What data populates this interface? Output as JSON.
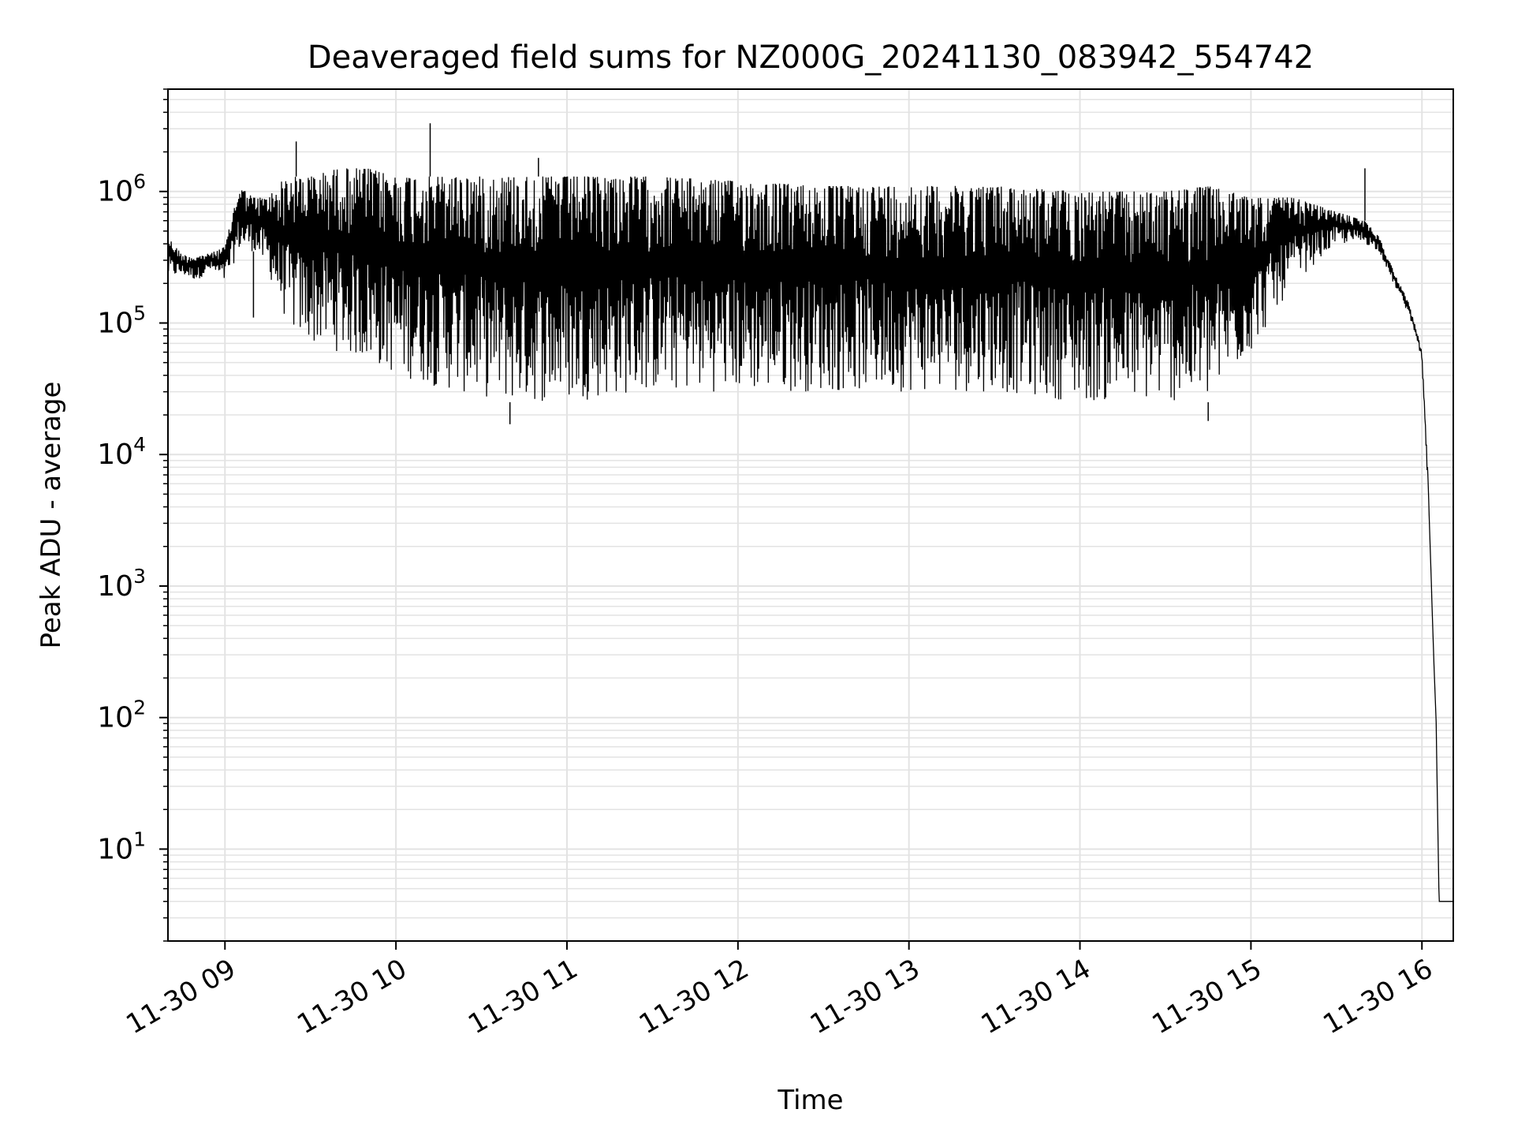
{
  "chart_data": {
    "type": "line",
    "title": "Deaveraged field sums for NZ000G_20241130_083942_554742",
    "xlabel": "Time",
    "ylabel": "Peak ADU - average",
    "yscale": "log",
    "grid": true,
    "line_color": "#000000",
    "grid_color": "#e3e3e3",
    "xlim": [
      "2024-11-30 08:40",
      "2024-11-30 16:11"
    ],
    "ylim": [
      2,
      6000000
    ],
    "x_ticks": [
      {
        "value": "2024-11-30 09:00",
        "label": "11-30 09"
      },
      {
        "value": "2024-11-30 10:00",
        "label": "11-30 10"
      },
      {
        "value": "2024-11-30 11:00",
        "label": "11-30 11"
      },
      {
        "value": "2024-11-30 12:00",
        "label": "11-30 12"
      },
      {
        "value": "2024-11-30 13:00",
        "label": "11-30 13"
      },
      {
        "value": "2024-11-30 14:00",
        "label": "11-30 14"
      },
      {
        "value": "2024-11-30 15:00",
        "label": "11-30 15"
      },
      {
        "value": "2024-11-30 16:00",
        "label": "11-30 16"
      }
    ],
    "y_ticks": [
      {
        "value": 10,
        "base": "10",
        "exp": "1"
      },
      {
        "value": 100,
        "base": "10",
        "exp": "2"
      },
      {
        "value": 1000,
        "base": "10",
        "exp": "3"
      },
      {
        "value": 10000,
        "base": "10",
        "exp": "4"
      },
      {
        "value": 100000,
        "base": "10",
        "exp": "5"
      },
      {
        "value": 1000000,
        "base": "10",
        "exp": "6"
      }
    ],
    "series": [
      {
        "x": [
          "2024-11-30 08:40",
          "2024-11-30 08:45",
          "2024-11-30 08:50",
          "2024-11-30 08:55",
          "2024-11-30 09:00",
          "2024-11-30 09:05",
          "2024-11-30 09:10",
          "2024-11-30 09:15",
          "2024-11-30 09:20",
          "2024-11-30 09:25",
          "2024-11-30 09:30",
          "2024-11-30 09:40",
          "2024-11-30 09:50",
          "2024-11-30 10:00",
          "2024-11-30 10:20",
          "2024-11-30 10:40",
          "2024-11-30 11:00",
          "2024-11-30 11:30",
          "2024-11-30 12:00",
          "2024-11-30 12:30",
          "2024-11-30 13:00",
          "2024-11-30 13:30",
          "2024-11-30 14:00",
          "2024-11-30 14:30",
          "2024-11-30 14:45",
          "2024-11-30 15:00",
          "2024-11-30 15:15",
          "2024-11-30 15:30",
          "2024-11-30 15:40",
          "2024-11-30 15:45",
          "2024-11-30 15:50",
          "2024-11-30 15:55",
          "2024-11-30 15:58",
          "2024-11-30 16:00",
          "2024-11-30 16:02",
          "2024-11-30 16:04",
          "2024-11-30 16:05",
          "2024-11-30 16:06",
          "2024-11-30 16:11"
        ],
        "high": [
          450000,
          330000,
          320000,
          340000,
          380000,
          1100000,
          900000,
          900000,
          1200000,
          1300000,
          1300000,
          1500000,
          1500000,
          1300000,
          1300000,
          1300000,
          1300000,
          1300000,
          1200000,
          1100000,
          1100000,
          1100000,
          1000000,
          1000000,
          1100000,
          900000,
          900000,
          700000,
          600000,
          450000,
          250000,
          150000,
          90000,
          60000,
          8000,
          350,
          90,
          4,
          4
        ],
        "low": [
          220000,
          230000,
          210000,
          250000,
          200000,
          350000,
          350000,
          250000,
          120000,
          80000,
          70000,
          60000,
          50000,
          40000,
          30000,
          25000,
          25000,
          30000,
          30000,
          30000,
          30000,
          30000,
          25000,
          25000,
          25000,
          60000,
          200000,
          400000,
          400000,
          350000,
          200000,
          120000,
          80000,
          50000,
          6000,
          300,
          80,
          4,
          4
        ]
      }
    ],
    "spikes": [
      {
        "x": "2024-11-30 09:25",
        "y": 2400000
      },
      {
        "x": "2024-11-30 10:12",
        "y": 3300000
      },
      {
        "x": "2024-11-30 10:50",
        "y": 1800000
      },
      {
        "x": "2024-11-30 15:40",
        "y": 1500000
      },
      {
        "x": "2024-11-30 09:10",
        "y": 110000
      },
      {
        "x": "2024-11-30 10:40",
        "y": 17000
      },
      {
        "x": "2024-11-30 14:45",
        "y": 18000
      }
    ]
  }
}
